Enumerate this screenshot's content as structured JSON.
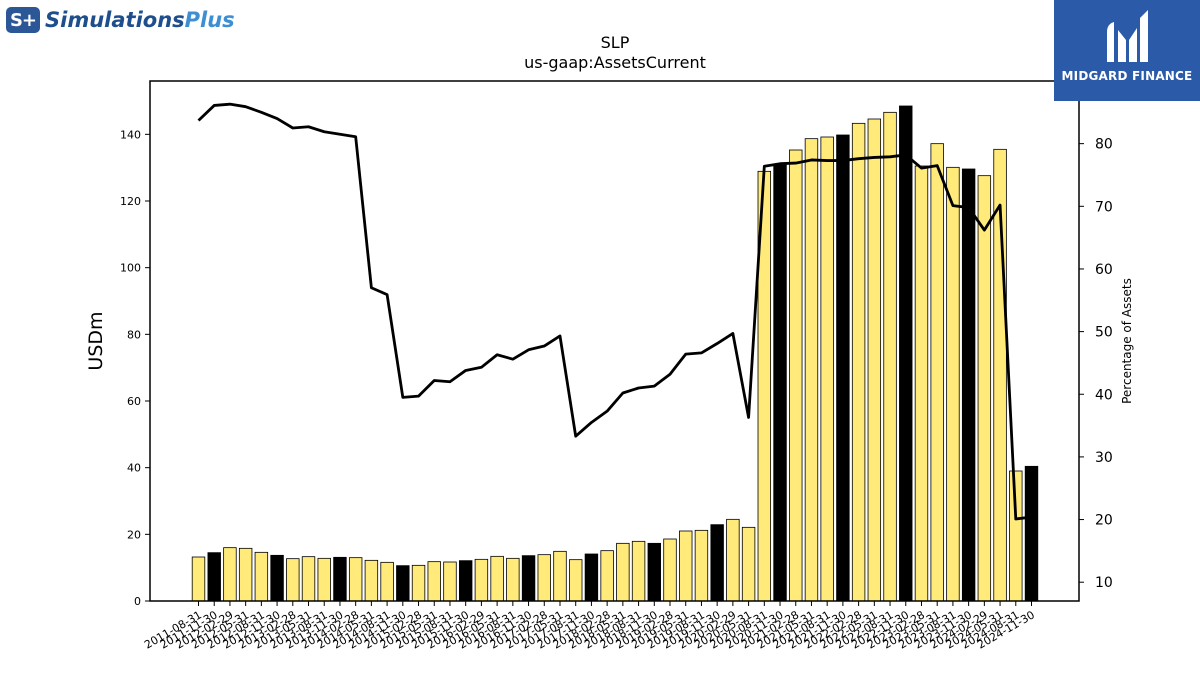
{
  "branding": {
    "left_logo_mark": "S+",
    "left_logo_word1": "Simulations",
    "left_logo_word2": "Plus",
    "right_logo_text": "MIDGARD FINANCE"
  },
  "chart_data": {
    "type": "bar",
    "title": "SLP",
    "subtitle": "us-gaap:AssetsCurrent",
    "ylabel": "USDm",
    "y2label": "Percentage of Assets",
    "ylim": [
      0,
      156
    ],
    "y2lim": [
      7,
      90
    ],
    "yticks": [
      0,
      20,
      40,
      60,
      80,
      100,
      120,
      140
    ],
    "y2ticks": [
      10,
      20,
      30,
      40,
      50,
      60,
      70,
      80
    ],
    "bar_colors": {
      "default": "#ffea7a",
      "highlight": "#000000"
    },
    "categories": [
      "2011-08-31",
      "2011-11-30",
      "2012-02-29",
      "2012-05-31",
      "2012-08-31",
      "2012-11-30",
      "2013-02-28",
      "2013-05-31",
      "2013-08-31",
      "2013-11-30",
      "2014-02-28",
      "2014-05-31",
      "2014-08-31",
      "2014-11-30",
      "2015-02-28",
      "2015-05-31",
      "2015-08-31",
      "2015-11-30",
      "2016-02-29",
      "2016-05-31",
      "2016-08-31",
      "2016-11-30",
      "2017-02-28",
      "2017-05-31",
      "2017-08-31",
      "2017-11-30",
      "2018-02-28",
      "2018-05-31",
      "2018-08-31",
      "2018-11-30",
      "2019-02-28",
      "2019-05-31",
      "2019-08-31",
      "2019-11-30",
      "2020-02-29",
      "2020-05-31",
      "2020-08-31",
      "2020-11-30",
      "2021-02-28",
      "2021-05-31",
      "2021-08-31",
      "2021-11-30",
      "2022-02-28",
      "2022-05-31",
      "2022-08-31",
      "2022-11-30",
      "2023-02-28",
      "2023-05-31",
      "2023-08-31",
      "2023-11-30",
      "2024-02-29",
      "2024-05-31",
      "2024-08-31",
      "2024-11-30"
    ],
    "series": [
      {
        "type": "bar",
        "values": [
          13.2,
          14.5,
          16.0,
          15.8,
          14.6,
          13.7,
          12.7,
          13.3,
          12.8,
          13.1,
          13.0,
          12.2,
          11.6,
          10.6,
          10.7,
          11.8,
          11.7,
          12.1,
          12.5,
          13.4,
          12.8,
          13.6,
          13.9,
          14.9,
          12.4,
          14.1,
          15.1,
          17.3,
          17.9,
          17.3,
          18.6,
          21.0,
          21.2,
          22.9,
          24.5,
          22.1,
          128.9,
          131.0,
          135.3,
          138.7,
          139.2,
          139.8,
          143.3,
          144.6,
          146.6,
          148.5,
          130.5,
          137.2,
          130.1,
          129.6,
          127.6,
          135.5,
          39.0,
          40.4
        ],
        "highlight": [
          false,
          true,
          false,
          false,
          false,
          true,
          false,
          false,
          false,
          true,
          false,
          false,
          false,
          true,
          false,
          false,
          false,
          true,
          false,
          false,
          false,
          true,
          false,
          false,
          false,
          true,
          false,
          false,
          false,
          true,
          false,
          false,
          false,
          true,
          false,
          false,
          false,
          true,
          false,
          false,
          false,
          true,
          false,
          false,
          false,
          true,
          false,
          false,
          false,
          true,
          false,
          false,
          false,
          true
        ]
      },
      {
        "type": "line",
        "color": "#000000",
        "values": [
          83.7,
          86.1,
          86.3,
          85.9,
          85.0,
          84.0,
          82.5,
          82.7,
          81.9,
          81.5,
          81.1,
          57.0,
          55.9,
          39.5,
          39.7,
          42.2,
          42.0,
          43.8,
          44.3,
          46.3,
          45.6,
          47.1,
          47.7,
          49.3,
          33.3,
          35.5,
          37.3,
          40.2,
          41.0,
          41.3,
          43.2,
          46.4,
          46.6,
          48.1,
          49.7,
          36.3,
          76.4,
          76.8,
          76.9,
          77.4,
          77.3,
          77.3,
          77.6,
          77.8,
          77.9,
          78.2,
          76.1,
          76.5,
          70.1,
          69.8,
          66.2,
          70.2,
          20.1,
          20.4
        ]
      }
    ]
  }
}
